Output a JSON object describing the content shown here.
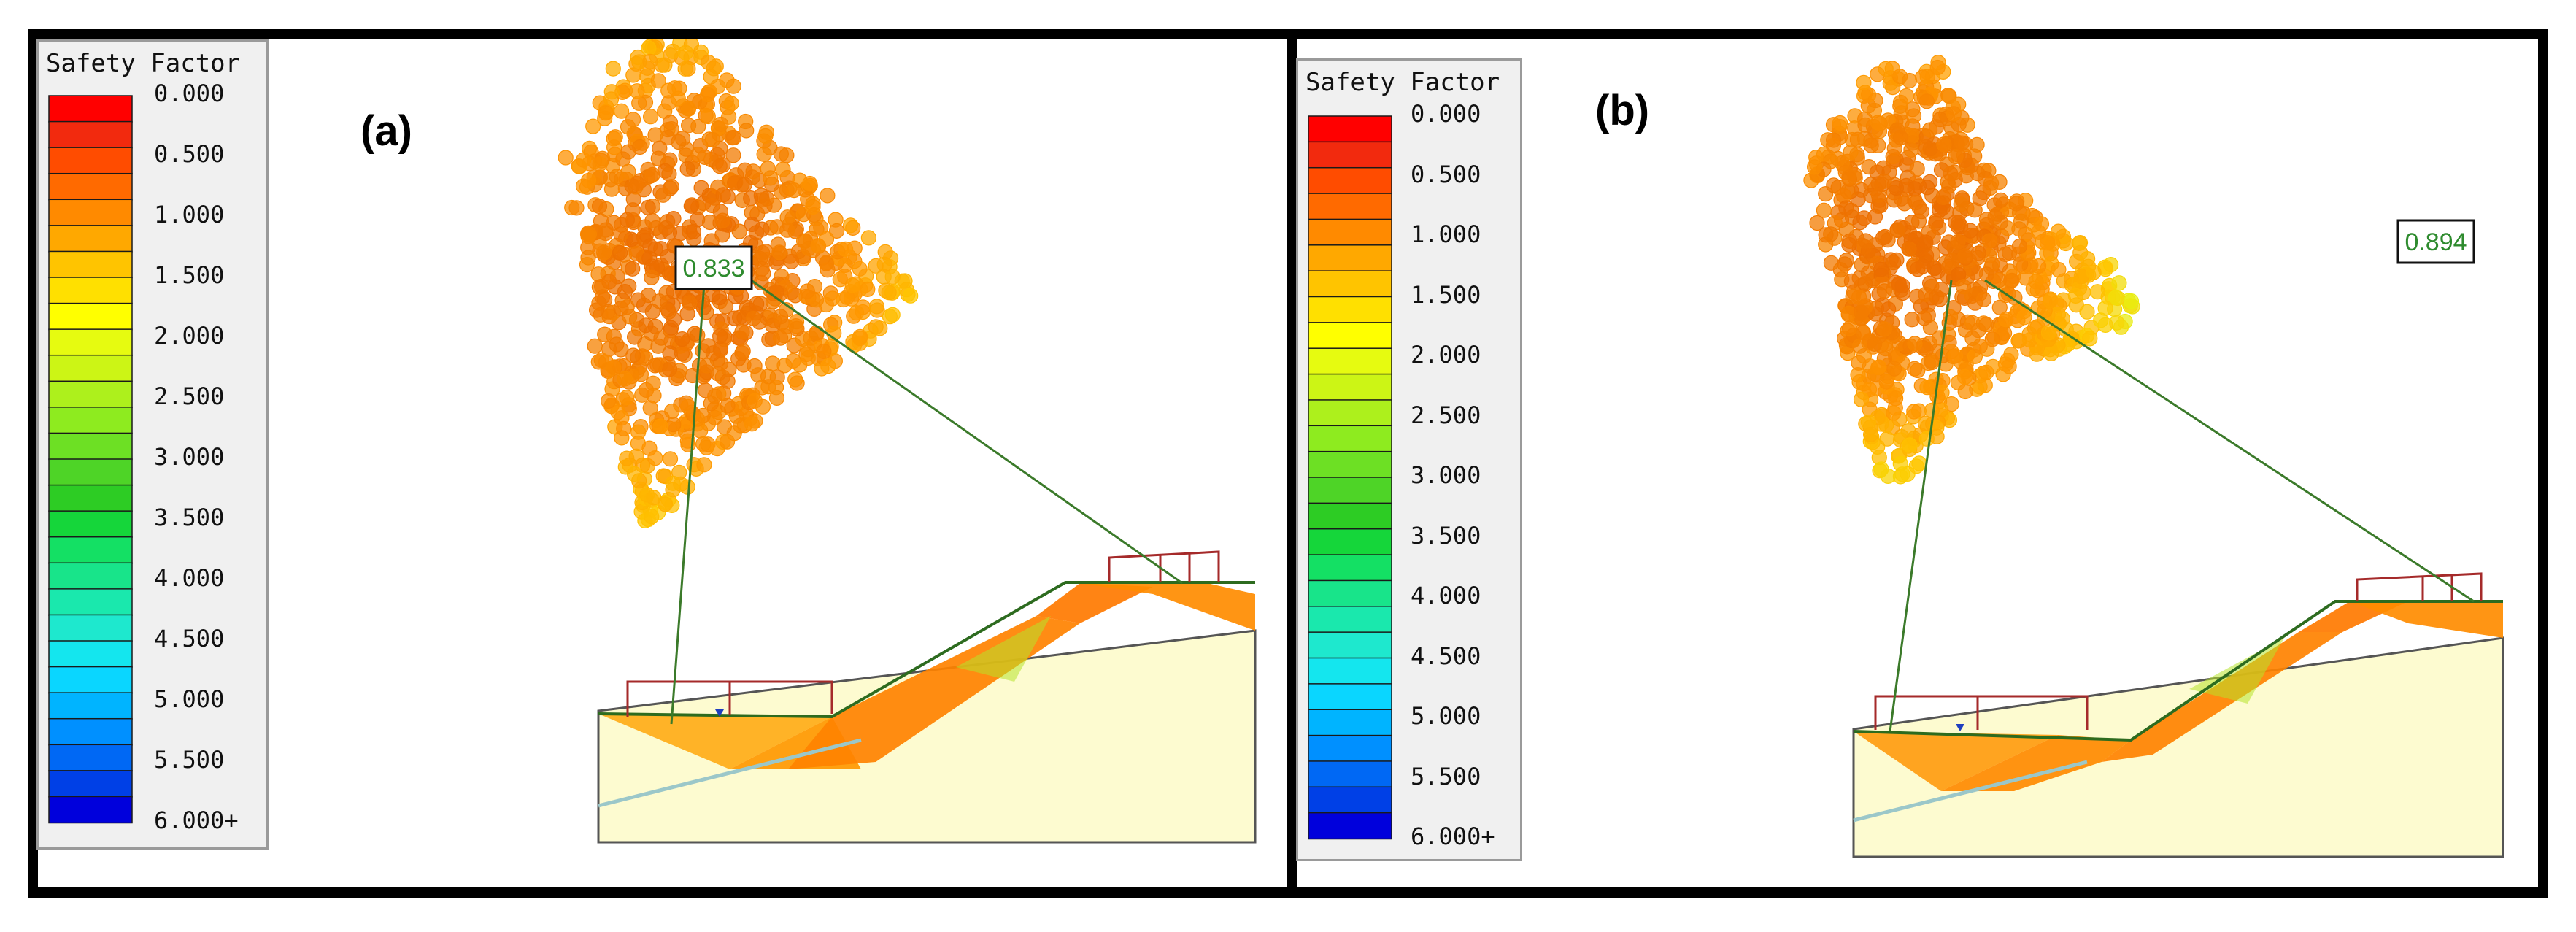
{
  "colors": {
    "frame": "#000000",
    "legend_bg": "#f0f0f0",
    "fs_text": "#2e8b2e",
    "slip_line": "#3b7a2a",
    "load": "#a52a2a",
    "ground_fill": "#fdfbd0",
    "water_table": "#1f3fbf"
  },
  "legend": {
    "title": "Safety Factor",
    "labels": [
      "0.000",
      "0.500",
      "1.000",
      "1.500",
      "2.000",
      "2.500",
      "3.000",
      "3.500",
      "4.000",
      "4.500",
      "5.000",
      "5.500",
      "6.000+"
    ],
    "swatches": [
      "#ff0000",
      "#f22a0e",
      "#ff4c00",
      "#ff6a00",
      "#ff8a00",
      "#ffa800",
      "#ffc400",
      "#ffe000",
      "#ffff00",
      "#e6fb10",
      "#ccf515",
      "#adf01c",
      "#8eeb1f",
      "#6de024",
      "#4ed427",
      "#2dcc24",
      "#15d63a",
      "#14e064",
      "#18e48a",
      "#1ae8ad",
      "#1ee8ce",
      "#14e6ee",
      "#0ad6ff",
      "#00b4ff",
      "#0090ff",
      "#0068f4",
      "#0040e6",
      "#0000dc"
    ]
  },
  "panels": [
    {
      "letter": "(a)",
      "min_fs": "0.833"
    },
    {
      "letter": "(b)",
      "min_fs": "0.894"
    }
  ]
}
